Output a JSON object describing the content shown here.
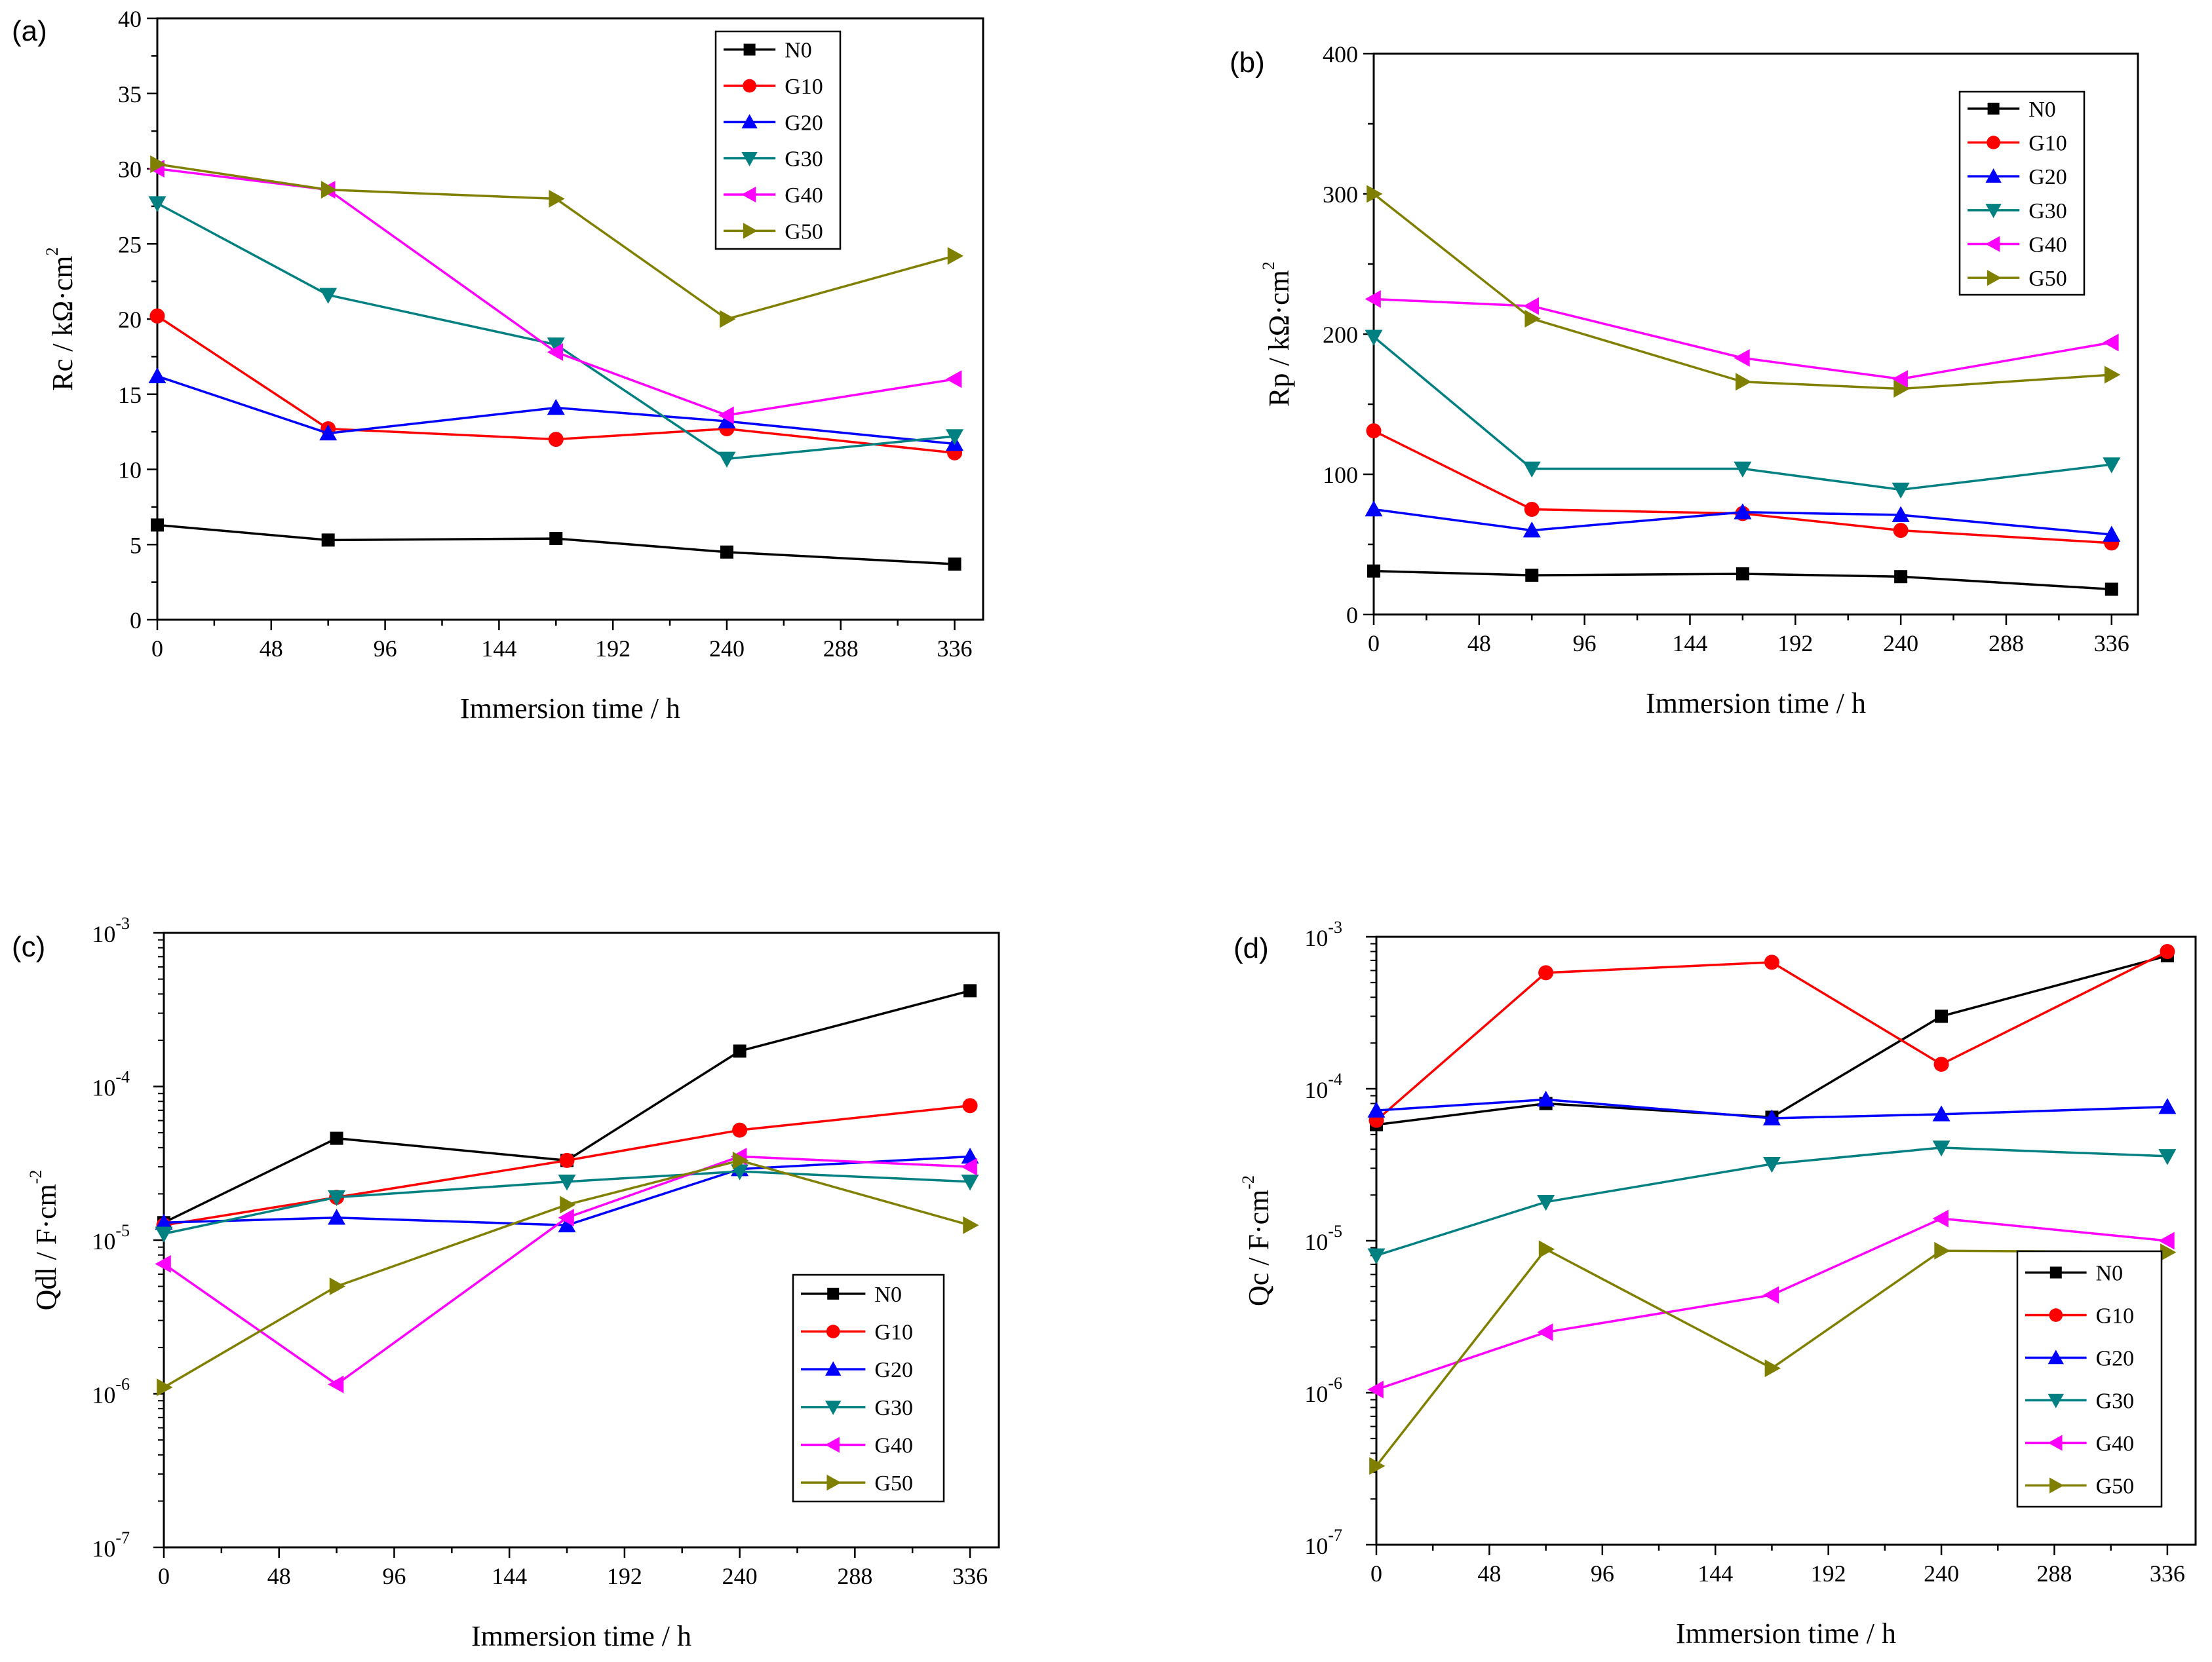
{
  "figure": {
    "colors": {
      "N0": "#000000",
      "G10": "#ff0000",
      "G20": "#0000ff",
      "G30": "#008080",
      "G40": "#ff00ff",
      "G50": "#808000"
    },
    "markers": {
      "N0": "square",
      "G10": "circle",
      "G20": "triangle-up",
      "G30": "triangle-down",
      "G40": "triangle-left",
      "G50": "triangle-right"
    }
  },
  "chart_data": [
    {
      "id": "a",
      "panel_label": "(a)",
      "type": "line",
      "scale": "linear",
      "xlabel": "Immersion time / h",
      "ylabel": "Rc / kΩ·cm",
      "ylabel_sup": "2",
      "xlim": [
        0,
        348
      ],
      "ylim": [
        0,
        40
      ],
      "xticks": [
        "0",
        "48",
        "96",
        "144",
        "192",
        "240",
        "288",
        "336"
      ],
      "yticks": [
        "0",
        "5",
        "10",
        "15",
        "20",
        "25",
        "30",
        "35",
        "40"
      ],
      "legend_position": "top-right",
      "x": [
        0,
        72,
        168,
        240,
        336
      ],
      "series": [
        {
          "name": "N0",
          "values": [
            6.3,
            5.3,
            5.4,
            4.5,
            3.7
          ]
        },
        {
          "name": "G10",
          "values": [
            20.2,
            12.7,
            12.0,
            12.7,
            11.1
          ]
        },
        {
          "name": "G20",
          "values": [
            16.2,
            12.4,
            14.1,
            13.2,
            11.7
          ]
        },
        {
          "name": "G30",
          "values": [
            27.7,
            21.6,
            18.3,
            10.7,
            12.2
          ]
        },
        {
          "name": "G40",
          "values": [
            30.0,
            28.6,
            17.8,
            13.6,
            16.0
          ]
        },
        {
          "name": "G50",
          "values": [
            30.3,
            28.6,
            28.0,
            20.0,
            24.2
          ]
        }
      ]
    },
    {
      "id": "b",
      "panel_label": "(b)",
      "type": "line",
      "scale": "linear",
      "xlabel": "Immersion time / h",
      "ylabel": "Rp / kΩ·cm",
      "ylabel_sup": "2",
      "xlim": [
        0,
        348
      ],
      "ylim": [
        0,
        400
      ],
      "xticks": [
        "0",
        "48",
        "96",
        "144",
        "192",
        "240",
        "288",
        "336"
      ],
      "yticks": [
        "0",
        "100",
        "200",
        "300",
        "400"
      ],
      "legend_position": "top-right",
      "x": [
        0,
        72,
        168,
        240,
        336
      ],
      "series": [
        {
          "name": "N0",
          "values": [
            31,
            28,
            29,
            27,
            18
          ]
        },
        {
          "name": "G10",
          "values": [
            131,
            75,
            72,
            60,
            51
          ]
        },
        {
          "name": "G20",
          "values": [
            75,
            60,
            73,
            71,
            57
          ]
        },
        {
          "name": "G30",
          "values": [
            198,
            104,
            104,
            89,
            107
          ]
        },
        {
          "name": "G40",
          "values": [
            225,
            220,
            183,
            168,
            194
          ]
        },
        {
          "name": "G50",
          "values": [
            300,
            211,
            166,
            161,
            171
          ]
        }
      ]
    },
    {
      "id": "c",
      "panel_label": "(c)",
      "type": "line",
      "scale": "log",
      "xlabel": "Immersion time / h",
      "ylabel": "Qdl / F·cm",
      "ylabel_sup": "-2",
      "xlim": [
        0,
        348
      ],
      "ylim": [
        1e-07,
        0.001
      ],
      "xticks": [
        "0",
        "48",
        "96",
        "144",
        "192",
        "240",
        "288",
        "336"
      ],
      "yticks": [
        {
          "base": "10",
          "exp": "-7"
        },
        {
          "base": "10",
          "exp": "-6"
        },
        {
          "base": "10",
          "exp": "-5"
        },
        {
          "base": "10",
          "exp": "-4"
        },
        {
          "base": "10",
          "exp": "-3"
        }
      ],
      "legend_position": "bottom-right",
      "x": [
        0,
        72,
        168,
        240,
        336
      ],
      "series": [
        {
          "name": "N0",
          "values": [
            1.3e-05,
            4.6e-05,
            3.3e-05,
            0.00017,
            0.00042
          ]
        },
        {
          "name": "G10",
          "values": [
            1.25e-05,
            1.9e-05,
            3.3e-05,
            5.2e-05,
            7.5e-05
          ]
        },
        {
          "name": "G20",
          "values": [
            1.3e-05,
            1.4e-05,
            1.25e-05,
            2.9e-05,
            3.5e-05
          ]
        },
        {
          "name": "G30",
          "values": [
            1.1e-05,
            1.9e-05,
            2.4e-05,
            2.8e-05,
            2.4e-05
          ]
        },
        {
          "name": "G40",
          "values": [
            7e-06,
            1.15e-06,
            1.4e-05,
            3.5e-05,
            3e-05
          ]
        },
        {
          "name": "G50",
          "values": [
            1.1e-06,
            5e-06,
            1.7e-05,
            3.3e-05,
            1.25e-05
          ]
        }
      ]
    },
    {
      "id": "d",
      "panel_label": "(d)",
      "type": "line",
      "scale": "log",
      "xlabel": "Immersion time / h",
      "ylabel": "Qc / F·cm",
      "ylabel_sup": "-2",
      "xlim": [
        0,
        348
      ],
      "ylim": [
        1e-07,
        0.001
      ],
      "xticks": [
        "0",
        "48",
        "96",
        "144",
        "192",
        "240",
        "288",
        "336"
      ],
      "yticks": [
        {
          "base": "10",
          "exp": "-7"
        },
        {
          "base": "10",
          "exp": "-6"
        },
        {
          "base": "10",
          "exp": "-5"
        },
        {
          "base": "10",
          "exp": "-4"
        },
        {
          "base": "10",
          "exp": "-3"
        }
      ],
      "legend_position": "bottom-right",
      "x": [
        0,
        72,
        168,
        240,
        336
      ],
      "series": [
        {
          "name": "N0",
          "values": [
            5.8e-05,
            8e-05,
            6.5e-05,
            0.0003,
            0.00075
          ]
        },
        {
          "name": "G10",
          "values": [
            6.2e-05,
            0.00058,
            0.00068,
            0.000145,
            0.0008
          ]
        },
        {
          "name": "G20",
          "values": [
            7.2e-05,
            8.5e-05,
            6.4e-05,
            6.8e-05,
            7.6e-05
          ]
        },
        {
          "name": "G30",
          "values": [
            8e-06,
            1.8e-05,
            3.2e-05,
            4.1e-05,
            3.6e-05
          ]
        },
        {
          "name": "G40",
          "values": [
            1.05e-06,
            2.5e-06,
            4.4e-06,
            1.4e-05,
            1e-05
          ]
        },
        {
          "name": "G50",
          "values": [
            3.3e-07,
            8.8e-06,
            1.45e-06,
            8.6e-06,
            8.4e-06
          ]
        }
      ]
    }
  ]
}
